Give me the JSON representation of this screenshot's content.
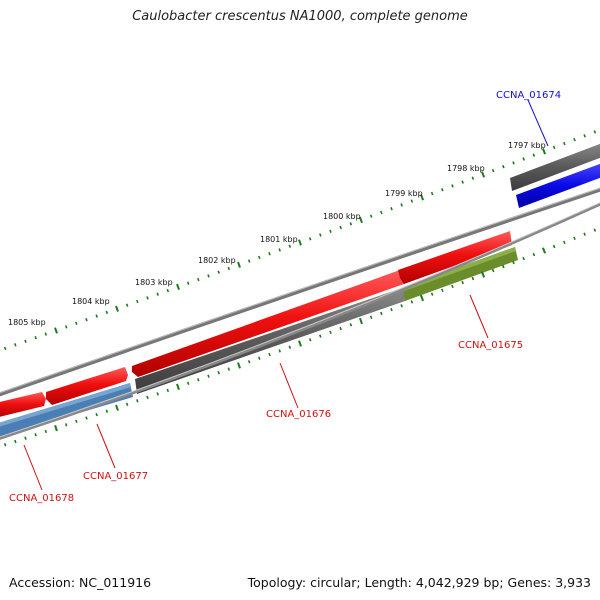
{
  "title": "Caulobacter crescentus NA1000, complete genome",
  "footer": {
    "accession": "Accession: NC_011916",
    "stats": "Topology: circular; Length: 4,042,929 bp; Genes: 3,933"
  },
  "colors": {
    "forward_gene": "#e81414",
    "reverse_gene": "#5f5f5f",
    "blue_gene": "#0a0ae6",
    "steelblue_gene": "#4a7fb5",
    "olive_gene": "#6b8c2a",
    "backbone": "#888888",
    "ticks": "#1e7a1e",
    "red_label": "#d01010",
    "blue_label": "#1010d0"
  },
  "ticks": [
    "1797 kbp",
    "1798 kbp",
    "1799 kbp",
    "1800 kbp",
    "1801 kbp",
    "1802 kbp",
    "1803 kbp",
    "1804 kbp",
    "1805 kbp"
  ],
  "genes": [
    {
      "id": "CCNA_01674",
      "color": "blue"
    },
    {
      "id": "CCNA_01675",
      "color": "red"
    },
    {
      "id": "CCNA_01676",
      "color": "red"
    },
    {
      "id": "CCNA_01677",
      "color": "red"
    },
    {
      "id": "CCNA_01678",
      "color": "red"
    }
  ]
}
